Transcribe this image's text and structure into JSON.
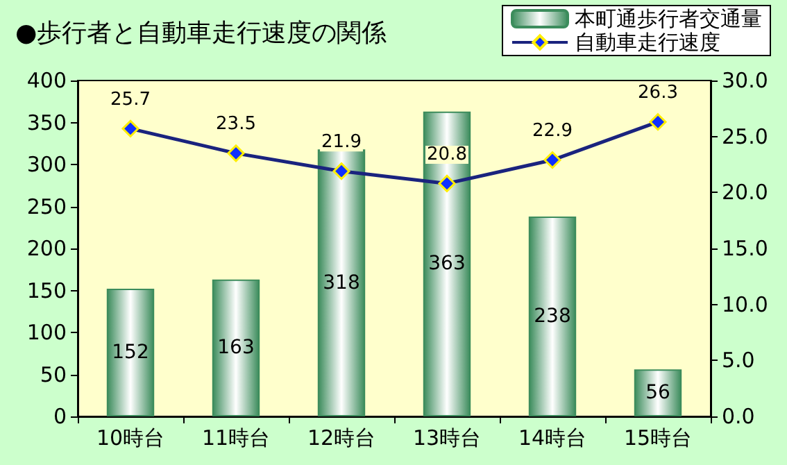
{
  "chart_data": {
    "type": "bar",
    "title": "●歩行者と自動車走行速度の関係",
    "categories": [
      "10時台",
      "11時台",
      "12時台",
      "13時台",
      "14時台",
      "15時台"
    ],
    "series": [
      {
        "name": "本町通歩行者交通量",
        "color": "#3c8c5c",
        "values": [
          152,
          163,
          318,
          363,
          238,
          56
        ]
      },
      {
        "name": "自動車走行速度",
        "type": "line",
        "axis": "y2",
        "color": "#1a237e",
        "marker": "diamond",
        "values": [
          25.7,
          23.5,
          21.9,
          20.8,
          22.9,
          26.3
        ]
      }
    ],
    "ylim": [
      0,
      400
    ],
    "yticks": [
      0,
      50,
      100,
      150,
      200,
      250,
      300,
      350,
      400
    ],
    "y2lim": [
      0,
      30
    ],
    "y2ticks": [
      {
        "value": 0,
        "label": "0.0"
      },
      {
        "value": 5,
        "label": "5.0"
      },
      {
        "value": 10,
        "label": "10.0"
      },
      {
        "value": 15,
        "label": "15.0"
      },
      {
        "value": 20,
        "label": "20.0"
      },
      {
        "value": 25,
        "label": "25.0"
      },
      {
        "value": 30,
        "label": "30.0"
      }
    ],
    "data_labels": true,
    "legend": "top right",
    "grid": false
  }
}
